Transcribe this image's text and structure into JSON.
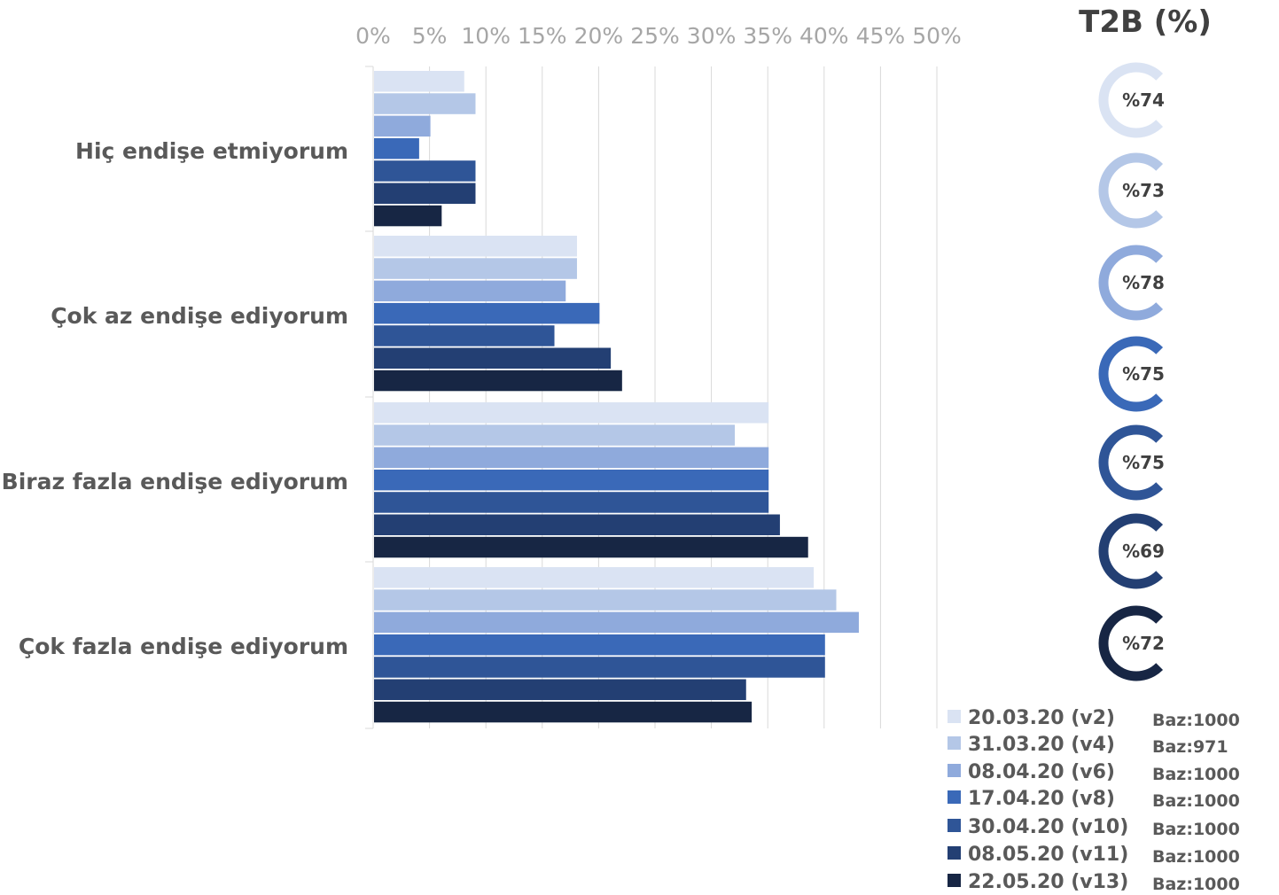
{
  "chart_data": {
    "type": "bar",
    "orientation": "horizontal",
    "categories": [
      "Hiç endişe etmiyorum",
      "Çok az endişe ediyorum",
      "Biraz fazla endişe ediyorum",
      "Çok fazla endişe ediyorum"
    ],
    "x_ticks": [
      "0%",
      "5%",
      "10%",
      "15%",
      "20%",
      "25%",
      "30%",
      "35%",
      "40%",
      "45%",
      "50%"
    ],
    "xlim": [
      0,
      50
    ],
    "grid": true,
    "series": [
      {
        "name": "20.03.20 (v2)",
        "base": "Baz:1000",
        "color": "#dae3f3",
        "t2b": "%74",
        "values": [
          8,
          18,
          35,
          39
        ]
      },
      {
        "name": "31.03.20 (v4)",
        "base": "Baz:971",
        "color": "#b4c7e7",
        "t2b": "%73",
        "values": [
          9,
          18,
          32,
          41
        ]
      },
      {
        "name": "08.04.20 (v6)",
        "base": "Baz:1000",
        "color": "#8faadc",
        "t2b": "%78",
        "values": [
          5,
          17,
          35,
          43
        ]
      },
      {
        "name": "17.04.20 (v8)",
        "base": "Baz:1000",
        "color": "#3a69b8",
        "t2b": "%75",
        "values": [
          4,
          20,
          35,
          40
        ]
      },
      {
        "name": "30.04.20 (v10)",
        "base": "Baz:1000",
        "color": "#2f5597",
        "t2b": "%75",
        "values": [
          9,
          16,
          35,
          40
        ]
      },
      {
        "name": "08.05.20 (v11)",
        "base": "Baz:1000",
        "color": "#233f73",
        "t2b": "%69",
        "values": [
          9,
          21,
          36,
          33
        ]
      },
      {
        "name": "22.05.20 (v13)",
        "base": "Baz:1000",
        "color": "#172644",
        "t2b": "%72",
        "values": [
          6,
          22,
          38.5,
          33.5
        ]
      }
    ],
    "t2b_title": "T2B (%)",
    "legend_position": "bottom-right"
  }
}
